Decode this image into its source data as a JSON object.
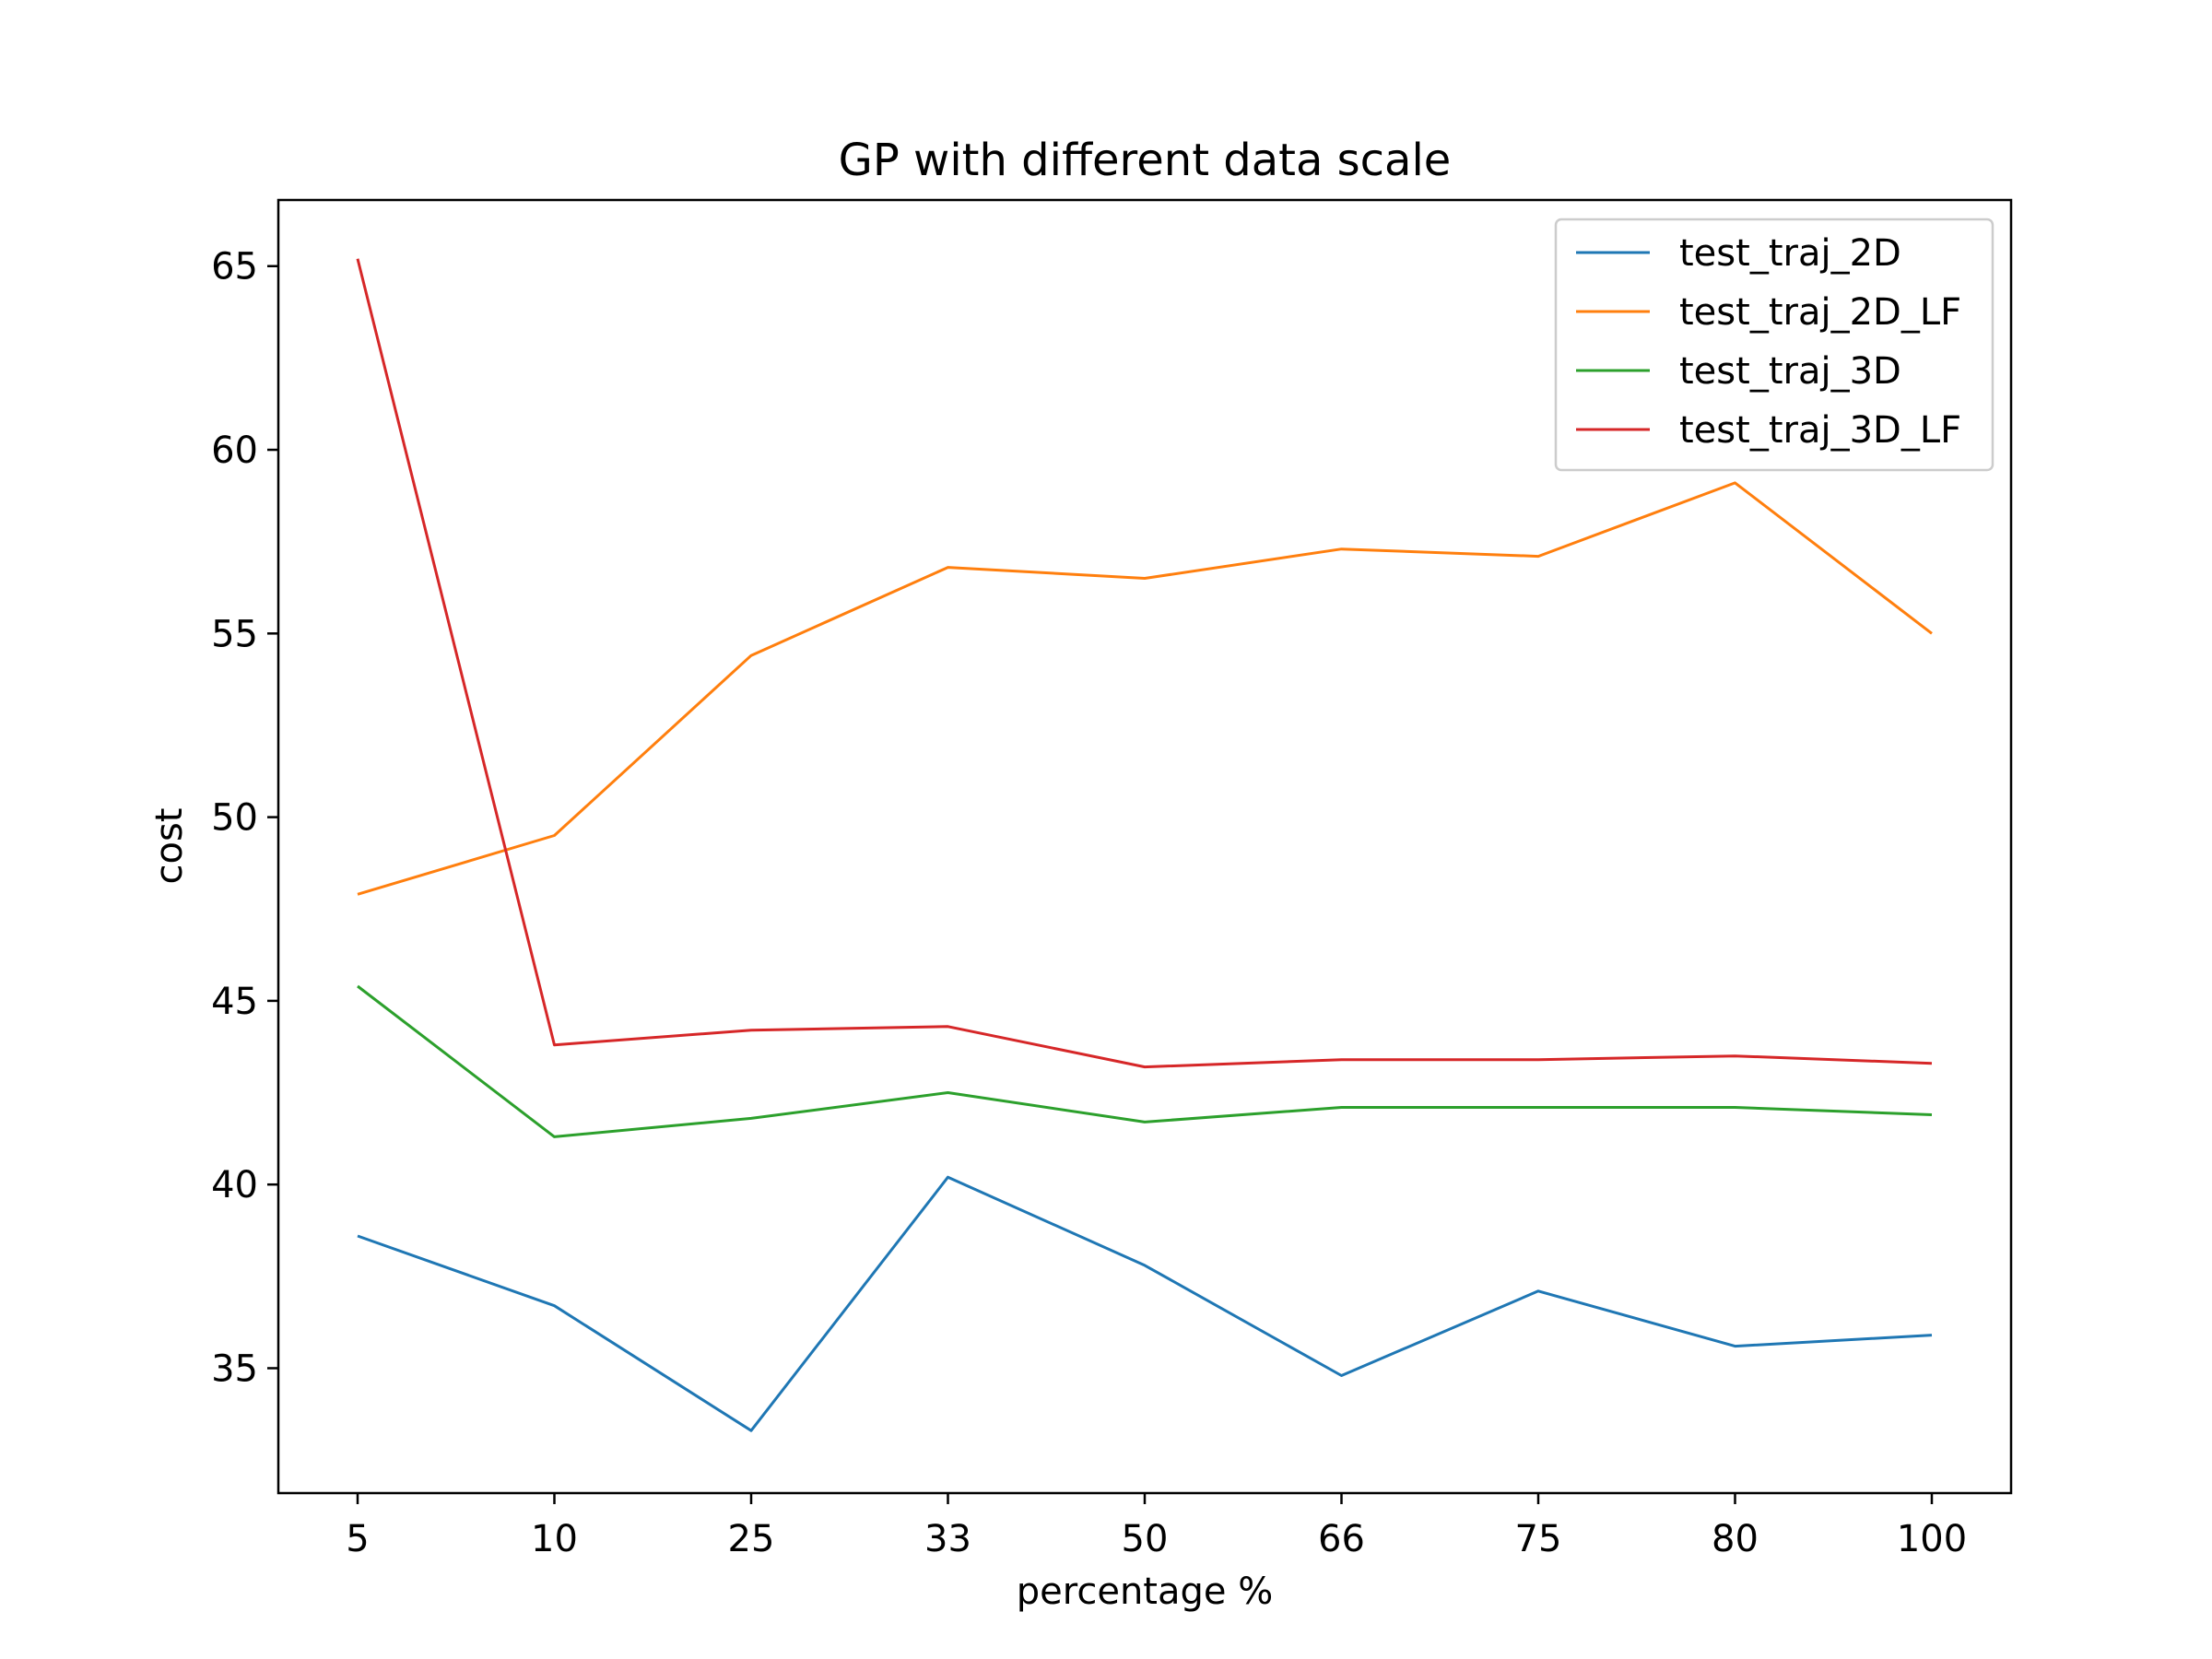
{
  "chart_data": {
    "type": "line",
    "title": "GP with different data scale",
    "xlabel": "percentage %",
    "ylabel": "cost",
    "categories": [
      "5",
      "10",
      "25",
      "33",
      "50",
      "66",
      "75",
      "80",
      "100"
    ],
    "ylim": [
      31.6,
      66.8
    ],
    "yticks": [
      35,
      40,
      45,
      50,
      55,
      60,
      65
    ],
    "grid": false,
    "legend_position": "top-right",
    "series": [
      {
        "name": "test_traj_2D",
        "color": "#1f77b4",
        "values": [
          38.6,
          36.7,
          33.3,
          40.2,
          37.8,
          34.8,
          37.1,
          35.6,
          35.9
        ]
      },
      {
        "name": "test_traj_2D_LF",
        "color": "#ff7f0e",
        "values": [
          47.9,
          49.5,
          54.4,
          56.8,
          56.5,
          57.3,
          57.1,
          59.1,
          55.0
        ]
      },
      {
        "name": "test_traj_3D",
        "color": "#2ca02c",
        "values": [
          45.4,
          41.3,
          41.8,
          42.5,
          41.7,
          42.1,
          42.1,
          42.1,
          41.9
        ]
      },
      {
        "name": "test_traj_3D_LF",
        "color": "#d62728",
        "values": [
          65.2,
          43.8,
          44.2,
          44.3,
          43.2,
          43.4,
          43.4,
          43.5,
          43.3
        ]
      }
    ]
  }
}
